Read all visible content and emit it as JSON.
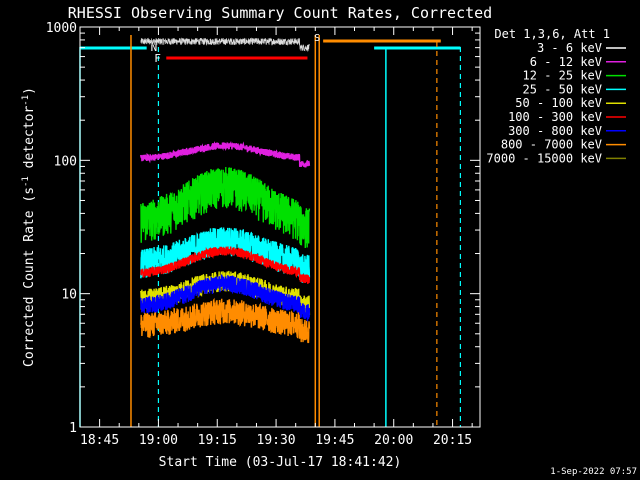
{
  "chart_data": {
    "type": "line",
    "title": "RHESSI Observing Summary Count Rates, Corrected",
    "xlabel": "Start Time (03-Jul-17 18:41:42)",
    "ylabel_parts": {
      "a": "Corrected Count Rate (s",
      "b": "-1",
      "c": " detector",
      "d": "-1",
      "e": ")"
    },
    "y_scale": "log",
    "ylim": [
      1,
      1000
    ],
    "y_ticks": [
      {
        "value": 1,
        "label": "1"
      },
      {
        "value": 10,
        "label": "10"
      },
      {
        "value": 100,
        "label": "100"
      },
      {
        "value": 1000,
        "label": "1000"
      }
    ],
    "xlim": [
      "18:40",
      "20:22"
    ],
    "x_ticks": [
      {
        "value": "18:45",
        "label": "18:45"
      },
      {
        "value": "19:00",
        "label": "19:00"
      },
      {
        "value": "19:15",
        "label": "19:15"
      },
      {
        "value": "19:30",
        "label": "19:30"
      },
      {
        "value": "19:45",
        "label": "19:45"
      },
      {
        "value": "20:00",
        "label": "20:00"
      },
      {
        "value": "20:15",
        "label": "20:15"
      }
    ],
    "legend_header": "Det 1,3,6, Att 1",
    "legend_position": "right",
    "series": [
      {
        "name": "3 - 6 keV",
        "color": "#000000",
        "level": 780,
        "noise": 0.06
      },
      {
        "name": "6 - 12 keV",
        "color": "#e020e0",
        "level": 103,
        "peak": 1.25,
        "noise": 0.06
      },
      {
        "name": "12 - 25 keV",
        "color": "#00e000",
        "level": 35,
        "peak": 1.9,
        "noise": 0.35
      },
      {
        "name": "25 - 50 keV",
        "color": "#00ffff",
        "level": 17,
        "peak": 1.5,
        "noise": 0.25
      },
      {
        "name": "50 - 100 keV",
        "color": "#e0e000",
        "level": 9,
        "peak": 1.4,
        "noise": 0.18
      },
      {
        "name": "100 - 300 keV",
        "color": "#ff0000",
        "level": 14,
        "peak": 1.5,
        "noise": 0.08
      },
      {
        "name": "300 - 800 keV",
        "color": "#0000ff",
        "level": 8,
        "peak": 1.5,
        "noise": 0.15
      },
      {
        "name": "800 - 7000 keV",
        "color": "#ff8c00",
        "level": 5.8,
        "peak": 1.3,
        "noise": 0.22
      },
      {
        "name": "7000 - 15000 keV",
        "color": "#808000"
      }
    ],
    "data_window": [
      "18:55",
      "19:39"
    ],
    "annotations": {
      "night_label": "N",
      "flare_label": "F",
      "saa_label": "S",
      "night_color": "#00ffff",
      "flare_color": "#ff0000",
      "saa_color": "#ff8c00",
      "night_bars": [
        [
          "18:40",
          "18:57"
        ],
        [
          "19:55",
          "20:17"
        ]
      ],
      "night_dashes": [
        "19:00",
        "20:17"
      ],
      "night_solid": [
        "18:40",
        "19:58"
      ],
      "flare_bar": [
        "19:02",
        "19:38"
      ],
      "saa_bar": [
        "19:42",
        "20:12"
      ],
      "saa_solid": [
        "18:53",
        "19:40",
        "19:41"
      ],
      "saa_dashes": [
        "20:11"
      ]
    },
    "timestamp": "1-Sep-2022 07:57"
  }
}
